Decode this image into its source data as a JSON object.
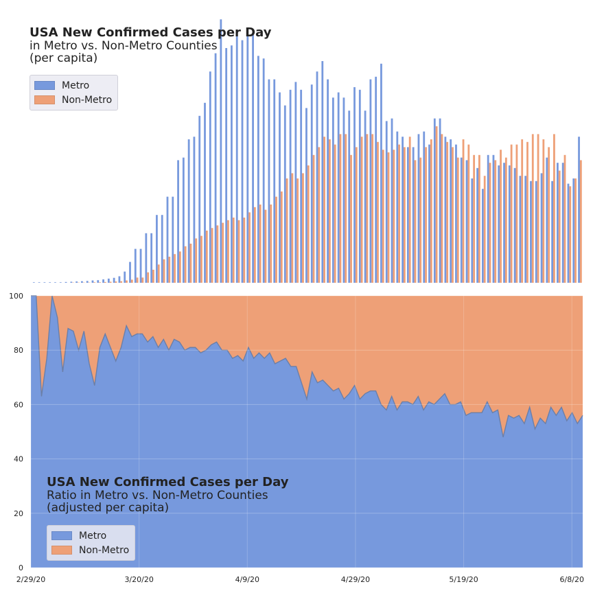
{
  "colors": {
    "metro": "#7799DD",
    "non_metro": "#EEA077",
    "panel_bg": "#EAEAF2"
  },
  "top": {
    "title": "USA New Confirmed Cases per Day",
    "subtitle": "in Metro vs. Non-Metro Counties",
    "subtitle2": "(per capita)",
    "legend": [
      "Metro",
      "Non-Metro"
    ]
  },
  "bottom": {
    "title": "USA New Confirmed Cases per Day",
    "subtitle": "Ratio in Metro vs. Non-Metro Counties",
    "subtitle2": "(adjusted per capita)",
    "legend": [
      "Metro",
      "Non-Metro"
    ]
  },
  "chart_data": [
    {
      "type": "bar",
      "title": "USA New Confirmed Cases per Day",
      "subtitle": "in Metro vs. Non-Metro Counties (per capita)",
      "x_start": "2/29/20",
      "n_days": 103,
      "ylim": [
        0,
        100
      ],
      "series": [
        {
          "name": "Metro",
          "values": [
            0.2,
            0.2,
            0.2,
            0.2,
            0.2,
            0.2,
            0.3,
            0.4,
            0.5,
            0.6,
            0.7,
            0.9,
            1,
            1.3,
            1.6,
            1.9,
            2.5,
            4.3,
            8,
            13,
            13,
            19,
            19,
            26,
            26,
            33,
            33,
            47,
            48,
            55,
            56,
            64,
            69,
            81,
            88,
            101,
            90,
            91,
            96,
            93,
            95,
            95,
            87,
            86,
            78,
            78,
            73,
            68,
            74,
            77,
            74,
            67,
            76,
            81,
            85,
            78,
            71,
            73,
            71,
            66,
            75,
            74,
            66,
            78,
            79,
            84,
            62,
            63,
            58,
            56,
            52,
            52,
            57,
            58,
            53,
            63,
            63,
            56,
            55,
            53,
            48,
            47,
            40,
            44,
            36,
            49,
            49,
            45,
            46,
            45,
            44,
            41,
            41,
            39,
            39,
            42,
            48,
            39,
            46,
            46,
            38,
            40,
            56
          ]
        },
        {
          "name": "Non-Metro",
          "values": [
            0,
            0,
            0,
            0,
            0,
            0,
            0,
            0.1,
            0.1,
            0.1,
            0.1,
            0.2,
            0.2,
            0.3,
            0.4,
            0.5,
            0.6,
            0.9,
            1.2,
            2,
            2,
            4,
            5,
            7,
            9,
            10,
            11,
            12,
            14,
            15,
            17,
            18,
            20,
            21,
            22,
            23,
            24,
            25,
            24,
            25,
            27,
            29,
            30,
            28,
            30,
            33,
            35,
            40,
            42,
            40,
            42,
            45,
            49,
            52,
            56,
            55,
            53,
            57,
            57,
            49,
            52,
            56,
            57,
            57,
            54,
            51,
            50,
            51,
            53,
            52,
            56,
            47,
            48,
            52,
            55,
            60,
            57,
            54,
            52,
            48,
            55,
            53,
            49,
            49,
            41,
            46,
            47,
            51,
            48,
            53,
            53,
            55,
            54,
            57,
            57,
            55,
            52,
            57,
            43,
            49,
            37,
            40,
            47
          ]
        }
      ]
    },
    {
      "type": "area",
      "title": "USA New Confirmed Cases per Day",
      "subtitle": "Ratio in Metro vs. Non-Metro Counties (adjusted per capita)",
      "x_ticks": [
        "2/29/20",
        "3/20/20",
        "4/9/20",
        "4/29/20",
        "5/19/20",
        "6/8/20"
      ],
      "y_ticks": [
        0,
        20,
        40,
        60,
        80,
        100
      ],
      "ylim": [
        0,
        100
      ],
      "series": [
        {
          "name": "Metro",
          "values": [
            100,
            100,
            63,
            77,
            100,
            92,
            72,
            88,
            87,
            80,
            87,
            75,
            67,
            81,
            86,
            81,
            76,
            81,
            89,
            85,
            86,
            86,
            83,
            85,
            81,
            84,
            80,
            84,
            83,
            80,
            81,
            81,
            79,
            80,
            82,
            83,
            80,
            80,
            77,
            78,
            76,
            81,
            77,
            79,
            77,
            79,
            75,
            76,
            77,
            74,
            74,
            68,
            62,
            72,
            68,
            69,
            67,
            65,
            66,
            62,
            64,
            67,
            62,
            64,
            65,
            65,
            60,
            58,
            63,
            58,
            61,
            61,
            60,
            63,
            58,
            61,
            60,
            62,
            64,
            60,
            60,
            61,
            56,
            57,
            57,
            57,
            61,
            57,
            58,
            48,
            56,
            55,
            56,
            53,
            59,
            51,
            55,
            53,
            59,
            56,
            59,
            54,
            57,
            53,
            56
          ]
        },
        {
          "name": "Non-Metro",
          "values": [
            0,
            0,
            37,
            23,
            0,
            8,
            28,
            12,
            13,
            20,
            13,
            25,
            33,
            19,
            14,
            19,
            24,
            19,
            11,
            15,
            14,
            14,
            17,
            15,
            19,
            16,
            20,
            16,
            17,
            20,
            19,
            19,
            21,
            20,
            18,
            17,
            20,
            20,
            23,
            22,
            24,
            19,
            23,
            21,
            23,
            21,
            25,
            24,
            23,
            26,
            26,
            32,
            38,
            28,
            32,
            31,
            33,
            35,
            34,
            38,
            36,
            33,
            38,
            36,
            35,
            35,
            40,
            42,
            37,
            42,
            39,
            39,
            40,
            37,
            42,
            39,
            40,
            38,
            36,
            40,
            40,
            39,
            44,
            43,
            43,
            43,
            39,
            43,
            42,
            52,
            44,
            45,
            44,
            47,
            41,
            49,
            45,
            47,
            41,
            44,
            41,
            46,
            43,
            47,
            44
          ]
        }
      ]
    }
  ]
}
